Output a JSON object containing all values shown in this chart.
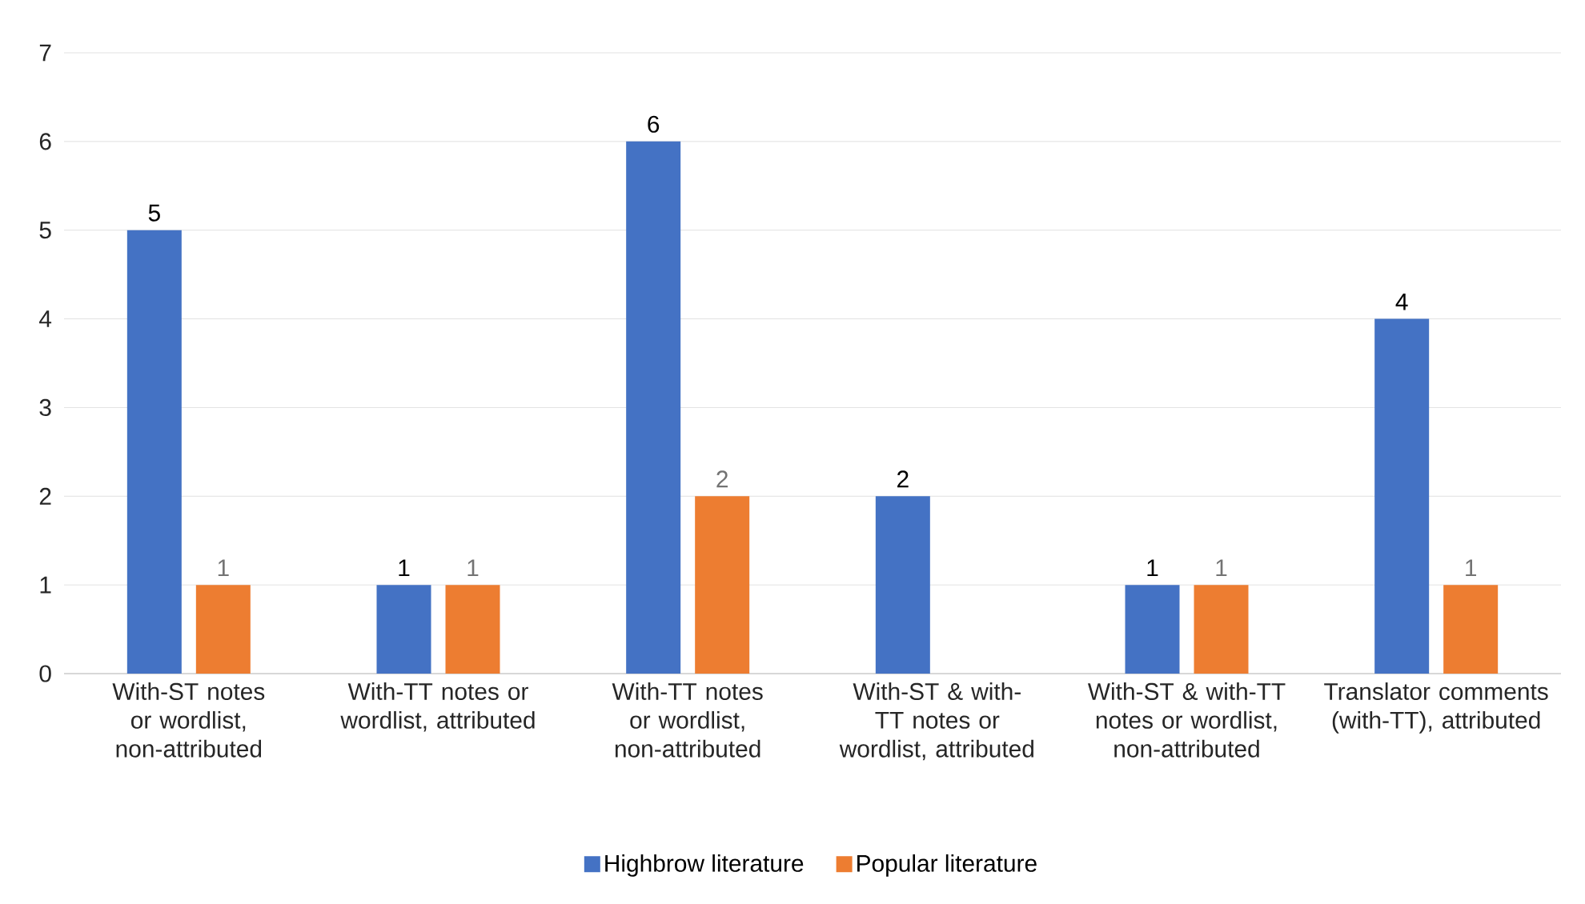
{
  "chart_data": {
    "type": "bar",
    "categories": [
      "With-ST notes or wordlist, non-attributed",
      "With-TT notes or wordlist, attributed",
      "With-TT notes or wordlist, non-attributed",
      "With-ST & with-TT notes or wordlist, attributed",
      "With-ST & with-TT notes or wordlist, non-attributed",
      "Translator comments (with-TT), attributed"
    ],
    "series": [
      {
        "name": "Highbrow literature",
        "color": "#4472c4",
        "values": [
          5,
          1,
          6,
          2,
          1,
          4
        ],
        "value_labels": [
          "5",
          "1",
          "6",
          "2",
          "1",
          "4"
        ]
      },
      {
        "name": "Popular literature",
        "color": "#ed7d31",
        "values": [
          1,
          1,
          2,
          0,
          1,
          1
        ],
        "value_labels": [
          "1",
          "1",
          "2",
          null,
          "1",
          "1"
        ]
      }
    ],
    "ylim": [
      0,
      7
    ],
    "yticks": [
      0,
      1,
      2,
      3,
      4,
      5,
      6,
      7
    ],
    "grid": "y",
    "legend": "bottom"
  }
}
